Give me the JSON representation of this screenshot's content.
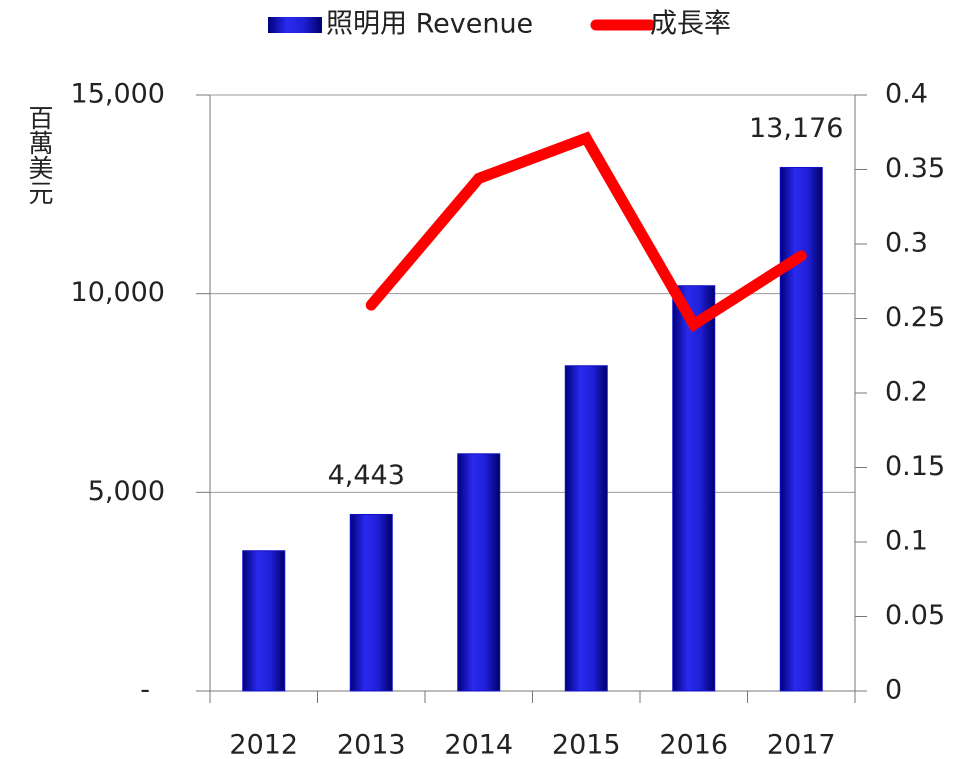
{
  "chart_data": {
    "type": "bar",
    "categories": [
      "2012",
      "2013",
      "2014",
      "2015",
      "2016",
      "2017"
    ],
    "y_label": "百萬美元",
    "series": [
      {
        "name": "照明用 Revenue",
        "color": "#1010c8",
        "axis": "y",
        "values": [
          3530,
          4443,
          5970,
          8186,
          10200,
          13176
        ],
        "value_labels": [
          null,
          "4,443",
          null,
          null,
          null,
          "13,176"
        ]
      },
      {
        "name": "成長率",
        "type": "line",
        "color": "#ff0000",
        "axis": "y2",
        "values": [
          null,
          0.259,
          0.344,
          0.371,
          0.246,
          0.292
        ]
      }
    ],
    "ylim": [
      0,
      15000
    ],
    "yticks": [
      {
        "value": 0,
        "label": "-"
      },
      {
        "value": 5000,
        "label": "5,000"
      },
      {
        "value": 10000,
        "label": "10,000"
      },
      {
        "value": 15000,
        "label": "15,000"
      }
    ],
    "y2lim": [
      0,
      0.4
    ],
    "y2ticks": [
      0,
      0.05,
      0.1,
      0.15,
      0.2,
      0.25,
      0.3,
      0.35,
      0.4
    ],
    "grid": true,
    "legend": "top"
  }
}
